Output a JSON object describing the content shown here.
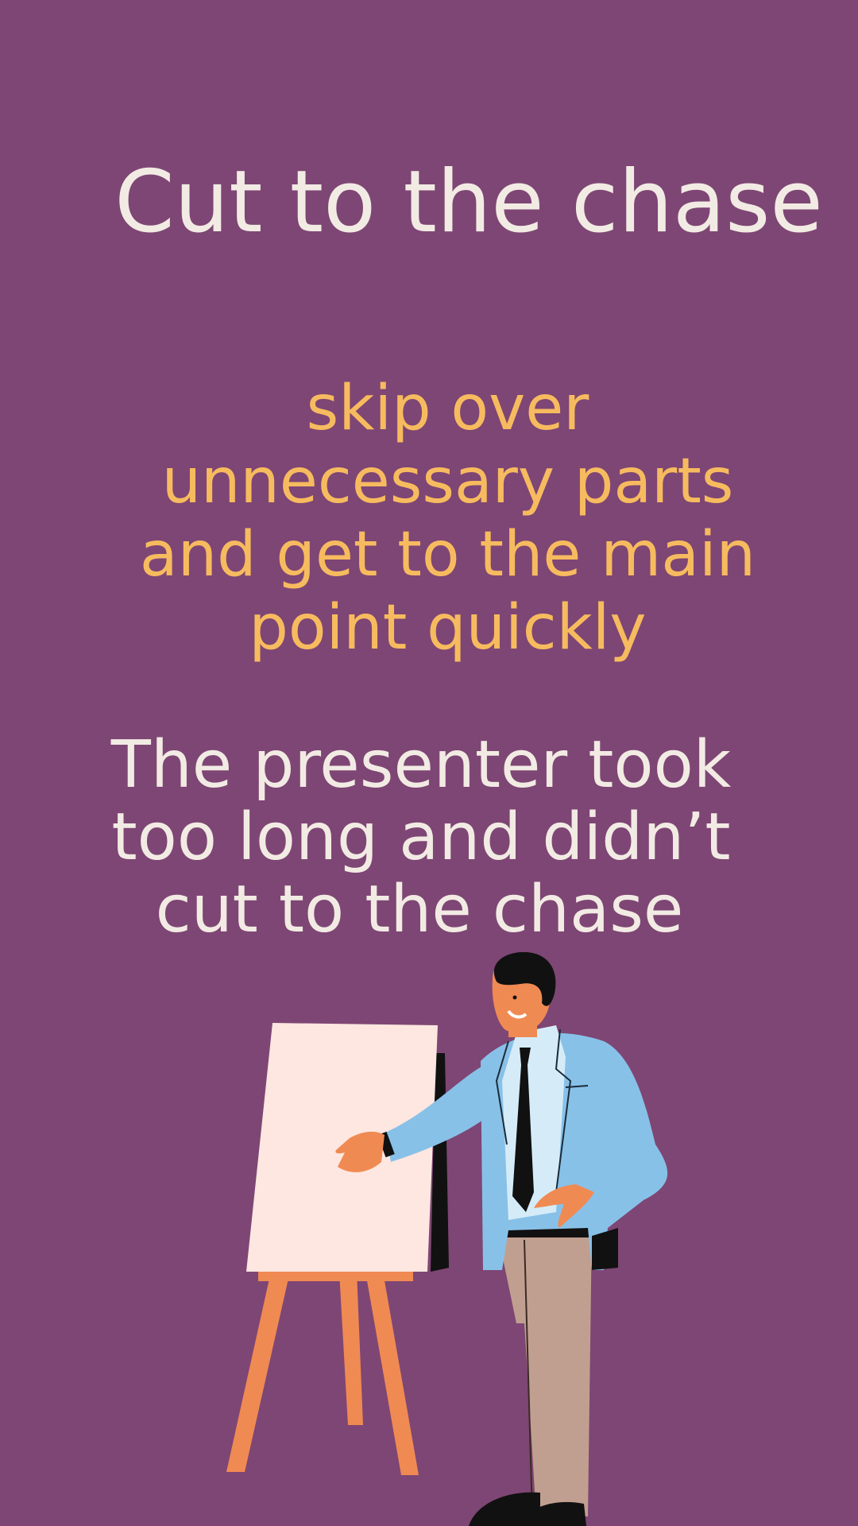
{
  "title": "Cut to the chase",
  "definition_lines": [
    "skip over",
    "unnecessary parts",
    "and get to the main",
    "point quickly"
  ],
  "example_lines": [
    "The presenter took",
    "too long and didn’t",
    "cut to the chase"
  ],
  "illustration": {
    "subject": "presenter-pointing-at-easel",
    "colors": {
      "background": "#7e4674",
      "board": "#fde7e0",
      "easel": "#f08a53",
      "jacket": "#88c1e8",
      "shirt": "#d5ecf8",
      "pants": "#c19f90",
      "skin": "#f08a53",
      "hair": "#111111"
    }
  }
}
